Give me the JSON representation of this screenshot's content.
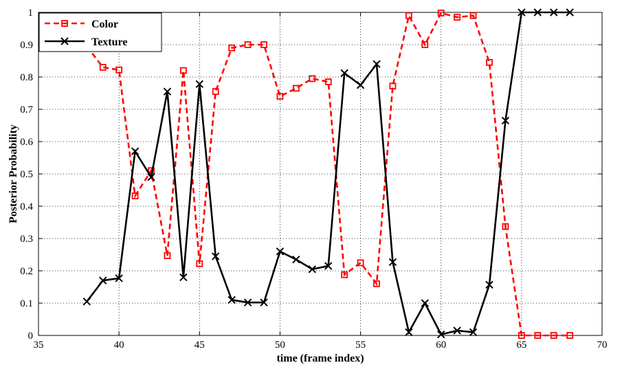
{
  "chart_data": {
    "type": "line",
    "xlabel": "time (frame index)",
    "ylabel": "Posterior Probability",
    "xlim": [
      35,
      70
    ],
    "ylim": [
      0,
      1
    ],
    "xticks": [
      35,
      40,
      45,
      50,
      55,
      60,
      65,
      70
    ],
    "yticks": [
      0,
      0.1,
      0.2,
      0.3,
      0.4,
      0.5,
      0.6,
      0.7,
      0.8,
      0.9,
      1
    ],
    "grid": true,
    "legend_position": "top-left",
    "series": [
      {
        "name": "Color",
        "color": "#ff0000",
        "line_style": "dashed",
        "marker": "square",
        "x": [
          38,
          39,
          40,
          41,
          42,
          43,
          44,
          45,
          46,
          47,
          48,
          49,
          50,
          51,
          52,
          53,
          54,
          55,
          56,
          57,
          58,
          59,
          60,
          61,
          62,
          63,
          64,
          65,
          66,
          67,
          68
        ],
        "values": [
          0.895,
          0.83,
          0.822,
          0.432,
          0.51,
          0.247,
          0.82,
          0.222,
          0.755,
          0.89,
          0.9,
          0.9,
          0.74,
          0.765,
          0.795,
          0.785,
          0.188,
          0.225,
          0.16,
          0.772,
          0.99,
          0.9,
          0.998,
          0.985,
          0.99,
          0.845,
          0.337,
          0.0,
          0.0,
          0.0,
          0.0
        ]
      },
      {
        "name": "Texture",
        "color": "#000000",
        "line_style": "solid",
        "marker": "x",
        "x": [
          38,
          39,
          40,
          41,
          42,
          43,
          44,
          45,
          46,
          47,
          48,
          49,
          50,
          51,
          52,
          53,
          54,
          55,
          56,
          57,
          58,
          59,
          60,
          61,
          62,
          63,
          64,
          65,
          66,
          67,
          68
        ],
        "values": [
          0.105,
          0.17,
          0.177,
          0.57,
          0.49,
          0.755,
          0.18,
          0.778,
          0.245,
          0.11,
          0.102,
          0.102,
          0.26,
          0.235,
          0.205,
          0.215,
          0.812,
          0.775,
          0.84,
          0.227,
          0.01,
          0.1,
          0.003,
          0.015,
          0.01,
          0.157,
          0.665,
          1.0,
          1.0,
          1.0,
          1.0
        ]
      }
    ]
  }
}
